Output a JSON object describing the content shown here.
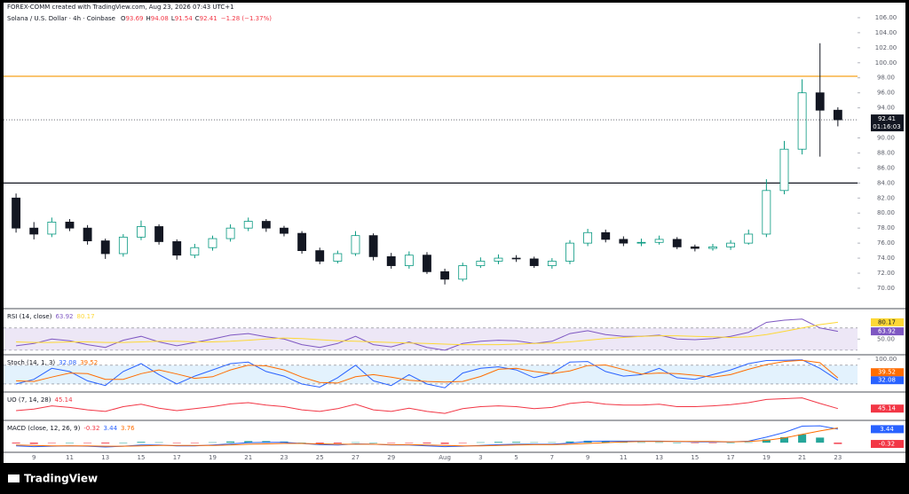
{
  "chart_data": {
    "type": "candlestick",
    "subtitle": "FOREX-COMM created with TradingView.com, Aug 23, 2026 07:43 UTC+1",
    "title": "Solana / U.S. Dollar · 4h · Coinbase",
    "ohlc_labels": [
      "O",
      "H",
      "L",
      "C"
    ],
    "change_label": "−1.28 (−1.37%)",
    "countdown": "01:16:03",
    "footer": "TradingView",
    "up_color": "#089981",
    "down_color": "#131722",
    "xlim": [
      -0.7,
      47.1
    ],
    "xticks": [
      {
        "value": 1,
        "label": "9"
      },
      {
        "value": 3,
        "label": "11"
      },
      {
        "value": 5,
        "label": "13"
      },
      {
        "value": 7,
        "label": "15"
      },
      {
        "value": 9,
        "label": "17"
      },
      {
        "value": 11,
        "label": "19"
      },
      {
        "value": 13,
        "label": "21"
      },
      {
        "value": 15,
        "label": "23"
      },
      {
        "value": 17,
        "label": "25"
      },
      {
        "value": 19,
        "label": "27"
      },
      {
        "value": 21,
        "label": "29"
      },
      {
        "value": 24,
        "label": "Aug"
      },
      {
        "value": 26,
        "label": "3"
      },
      {
        "value": 28,
        "label": "5"
      },
      {
        "value": 30,
        "label": "7"
      },
      {
        "value": 32,
        "label": "9"
      },
      {
        "value": 34,
        "label": "11"
      },
      {
        "value": 36,
        "label": "13"
      },
      {
        "value": 38,
        "label": "15"
      },
      {
        "value": 40,
        "label": "17"
      },
      {
        "value": 42,
        "label": "19"
      },
      {
        "value": 44,
        "label": "21"
      },
      {
        "value": 46,
        "label": "23"
      }
    ],
    "ylim": [
      67.4,
      106.7
    ],
    "yticks": [
      {
        "value": 70,
        "label": "70.00"
      },
      {
        "value": 72,
        "label": "72.00"
      },
      {
        "value": 74,
        "label": "74.00"
      },
      {
        "value": 76,
        "label": "76.00"
      },
      {
        "value": 78,
        "label": "78.00"
      },
      {
        "value": 80,
        "label": "80.00"
      },
      {
        "value": 82,
        "label": "82.00"
      },
      {
        "value": 84,
        "label": "84.00"
      },
      {
        "value": 86,
        "label": "86.00"
      },
      {
        "value": 88,
        "label": "88.00"
      },
      {
        "value": 90,
        "label": "90.00"
      },
      {
        "value": 94,
        "label": "94.00"
      },
      {
        "value": 96,
        "label": "96.00"
      },
      {
        "value": 98,
        "label": "98.00"
      },
      {
        "value": 100,
        "label": "100.00"
      },
      {
        "value": 102,
        "label": "102.00"
      },
      {
        "value": 104,
        "label": "104.00"
      },
      {
        "value": 106,
        "label": "106.00"
      }
    ],
    "hlines": [
      {
        "value": 98.2,
        "color": "#f7a21b"
      },
      {
        "value": 84.0,
        "color": "#131722"
      }
    ],
    "open": [
      82.0,
      78.0,
      77.2,
      78.8,
      78.0,
      76.3,
      74.6,
      76.8,
      78.2,
      76.2,
      74.4,
      75.4,
      76.6,
      78.0,
      78.9,
      78.0,
      77.3,
      75.0,
      73.6,
      74.6,
      77.0,
      74.2,
      73.0,
      74.4,
      72.2,
      71.2,
      73.0,
      73.6,
      74.0,
      73.9,
      73.0,
      73.6,
      76.0,
      77.4,
      76.5,
      76.0,
      76.1,
      76.5,
      75.5,
      75.3,
      75.5,
      76.0,
      77.2,
      83.0,
      88.5,
      96.0,
      93.69
    ],
    "high": [
      82.6,
      78.8,
      79.4,
      79.2,
      78.4,
      76.6,
      77.2,
      79.0,
      78.5,
      76.5,
      75.9,
      77.0,
      78.5,
      79.4,
      79.2,
      78.3,
      77.6,
      75.4,
      75.0,
      77.6,
      77.3,
      74.7,
      74.9,
      74.8,
      72.6,
      73.4,
      74.1,
      74.5,
      74.4,
      74.2,
      74.0,
      76.4,
      77.9,
      77.8,
      76.9,
      76.6,
      77.0,
      76.8,
      75.8,
      75.9,
      76.4,
      77.8,
      84.5,
      89.6,
      97.8,
      102.6,
      94.08
    ],
    "low": [
      77.4,
      76.5,
      76.8,
      77.6,
      75.8,
      73.9,
      74.2,
      76.4,
      75.8,
      73.8,
      74.0,
      75.0,
      76.2,
      77.6,
      77.5,
      76.9,
      74.6,
      73.2,
      73.3,
      74.3,
      73.7,
      72.6,
      72.6,
      71.9,
      70.5,
      70.9,
      72.7,
      73.2,
      73.5,
      72.7,
      72.6,
      73.2,
      75.6,
      76.1,
      75.6,
      75.6,
      75.8,
      75.2,
      74.9,
      75.0,
      75.1,
      75.8,
      76.8,
      82.5,
      87.8,
      87.5,
      91.54
    ],
    "close": [
      78.0,
      77.2,
      78.8,
      78.0,
      76.3,
      74.6,
      76.8,
      78.2,
      76.2,
      74.4,
      75.4,
      76.6,
      78.0,
      78.9,
      78.0,
      77.3,
      75.0,
      73.6,
      74.6,
      77.0,
      74.2,
      73.0,
      74.4,
      72.2,
      71.2,
      73.0,
      73.6,
      74.0,
      73.9,
      73.0,
      73.6,
      76.0,
      77.4,
      76.5,
      76.0,
      76.1,
      76.5,
      75.5,
      75.3,
      75.5,
      76.0,
      77.2,
      83.0,
      88.5,
      96.0,
      93.69,
      92.41
    ],
    "panes": [
      {
        "title": "RSI (14, close)",
        "ylim": [
          25,
          100
        ],
        "yticks": [
          {
            "value": 50,
            "label": "50.00"
          }
        ],
        "band": [
          30,
          70
        ],
        "band_color": "#ede7f6",
        "series": [
          {
            "type": "line",
            "color": "#7e57c2",
            "tag": true,
            "values": [
              38,
              42,
              50,
              47,
              40,
              35,
              48,
              55,
              45,
              38,
              44,
              50,
              57,
              60,
              54,
              50,
              40,
              35,
              42,
              55,
              40,
              36,
              45,
              35,
              30,
              42,
              46,
              48,
              47,
              42,
              46,
              60,
              65,
              58,
              55,
              55,
              57,
              50,
              49,
              51,
              55,
              62,
              80,
              84,
              86,
              70,
              63.92
            ]
          },
          {
            "type": "line",
            "color": "#fdd835",
            "tag": true,
            "values": [
              45,
              44,
              44,
              45,
              45,
              44,
              44,
              45,
              46,
              46,
              45,
              45,
              46,
              48,
              50,
              52,
              51,
              49,
              47,
              46,
              45,
              44,
              43,
              42,
              41,
              40,
              40,
              40,
              41,
              42,
              43,
              45,
              48,
              51,
              53,
              55,
              56,
              56,
              55,
              54,
              53,
              54,
              58,
              64,
              70,
              76,
              80.17
            ]
          }
        ]
      },
      {
        "title": "Stoch (14, 1, 3)",
        "ylim": [
          0,
          105
        ],
        "yticks": [
          {
            "value": 100,
            "label": "100.00"
          }
        ],
        "band": [
          20,
          80
        ],
        "band_color": "#e3f2fd",
        "series": [
          {
            "type": "line",
            "color": "#2962ff",
            "tag": true,
            "values": [
              20,
              35,
              70,
              60,
              30,
              15,
              60,
              85,
              50,
              20,
              45,
              65,
              85,
              90,
              60,
              45,
              20,
              10,
              40,
              80,
              30,
              15,
              50,
              20,
              8,
              55,
              70,
              75,
              65,
              40,
              55,
              90,
              92,
              60,
              45,
              50,
              70,
              40,
              35,
              50,
              65,
              85,
              95,
              96,
              97,
              70,
              32.08
            ]
          },
          {
            "type": "line",
            "color": "#ff6d00",
            "tag": true,
            "values": [
              30,
              28,
              42,
              55,
              53,
              35,
              35,
              53,
              65,
              52,
              38,
              43,
              65,
              80,
              78,
              65,
              42,
              25,
              23,
              43,
              50,
              42,
              32,
              28,
              26,
              28,
              44,
              67,
              70,
              60,
              53,
              62,
              79,
              81,
              66,
              52,
              55,
              53,
              48,
              42,
              50,
              67,
              82,
              92,
              96,
              88,
              39.52
            ]
          }
        ]
      },
      {
        "title": "UO (7, 14, 28)",
        "ylim": [
          20,
          80
        ],
        "yticks": [],
        "series": [
          {
            "type": "line",
            "color": "#f23645",
            "tag": true,
            "values": [
              40,
              44,
              52,
              48,
              42,
              38,
              50,
              56,
              46,
              40,
              45,
              50,
              57,
              60,
              54,
              50,
              42,
              38,
              45,
              56,
              42,
              38,
              46,
              38,
              33,
              45,
              50,
              52,
              50,
              45,
              48,
              58,
              62,
              56,
              54,
              54,
              56,
              50,
              50,
              52,
              55,
              60,
              68,
              70,
              72,
              58,
              45.14
            ]
          }
        ]
      },
      {
        "title": "MACD (close, 12, 26, 9)",
        "ylim": [
          -2,
          5
        ],
        "yticks": [],
        "series": [
          {
            "type": "histogram",
            "color": "#26a69a",
            "neg_color": "#f23645",
            "tag": true,
            "values": [
              -0.2,
              -0.3,
              -0.1,
              0.0,
              -0.1,
              -0.2,
              0.0,
              0.2,
              0.1,
              -0.1,
              -0.1,
              0.1,
              0.3,
              0.4,
              0.4,
              0.3,
              0.0,
              -0.2,
              -0.2,
              0.1,
              0.0,
              -0.1,
              -0.1,
              -0.2,
              -0.3,
              -0.1,
              0.1,
              0.2,
              0.2,
              0.1,
              0.1,
              0.3,
              0.5,
              0.4,
              0.2,
              0.1,
              0.1,
              0.0,
              -0.1,
              -0.1,
              0.0,
              0.1,
              0.8,
              1.4,
              2.1,
              1.3,
              -0.32
            ]
          },
          {
            "type": "line",
            "color": "#2962ff",
            "tag": true,
            "values": [
              -0.8,
              -1.0,
              -0.9,
              -0.8,
              -0.9,
              -1.1,
              -0.9,
              -0.6,
              -0.6,
              -0.8,
              -0.8,
              -0.6,
              -0.3,
              0.0,
              0.1,
              0.1,
              -0.2,
              -0.5,
              -0.6,
              -0.3,
              -0.4,
              -0.6,
              -0.6,
              -0.8,
              -1.0,
              -0.9,
              -0.7,
              -0.5,
              -0.4,
              -0.4,
              -0.4,
              -0.1,
              0.3,
              0.4,
              0.4,
              0.4,
              0.4,
              0.3,
              0.2,
              0.2,
              0.2,
              0.4,
              1.4,
              2.6,
              4.2,
              4.3,
              3.44
            ]
          },
          {
            "type": "line",
            "color": "#ff6d00",
            "tag": false,
            "values": [
              -0.6,
              -0.7,
              -0.8,
              -0.8,
              -0.8,
              -0.9,
              -0.9,
              -0.8,
              -0.7,
              -0.7,
              -0.7,
              -0.7,
              -0.6,
              -0.4,
              -0.3,
              -0.2,
              -0.2,
              -0.3,
              -0.4,
              -0.4,
              -0.4,
              -0.5,
              -0.5,
              -0.6,
              -0.7,
              -0.8,
              -0.8,
              -0.7,
              -0.6,
              -0.5,
              -0.5,
              -0.4,
              -0.2,
              0.0,
              0.2,
              0.3,
              0.3,
              0.3,
              0.3,
              0.3,
              0.2,
              0.3,
              0.6,
              1.2,
              2.1,
              3.0,
              3.76
            ]
          }
        ]
      }
    ]
  }
}
